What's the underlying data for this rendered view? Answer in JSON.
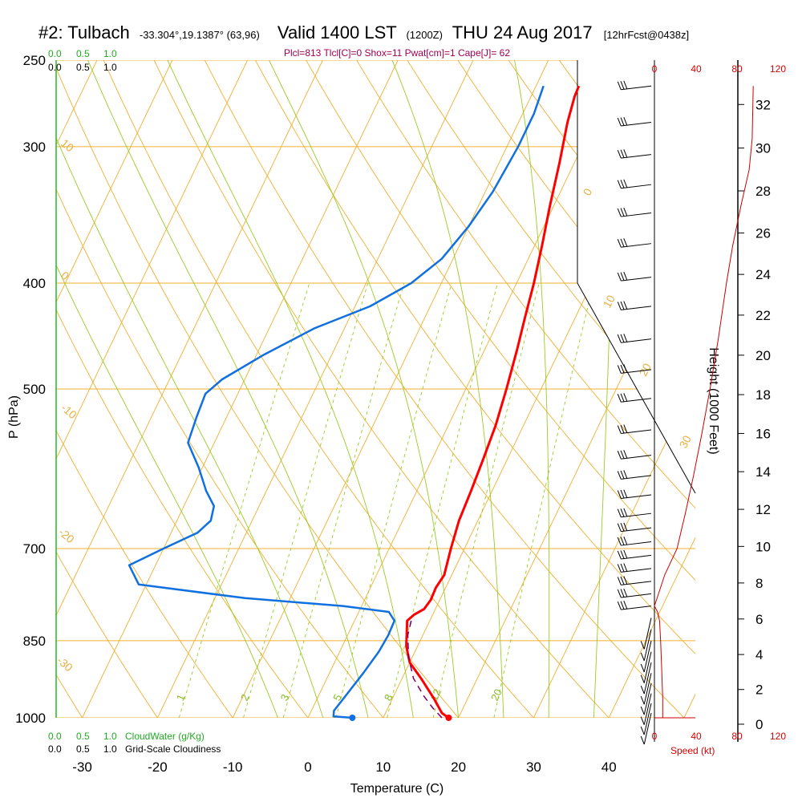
{
  "header": {
    "station": "#2: Tulbach",
    "coords": "-33.304°,19.1387° (63,96)",
    "valid": "Valid 1400 LST",
    "zulu": "(1200Z)",
    "date": "THU 24 Aug 2017",
    "forecast": "[12hrFcst@0438z]"
  },
  "params_line": "Plcl=813 Tlcl[C]=0 Shox=11 Pwat[cm]=1 Cape[J]= 62",
  "scales": {
    "cloudwater_ticks": [
      "0.0",
      "0.5",
      "1.0"
    ],
    "cloudiness_ticks": [
      "0.0",
      "0.5",
      "1.0"
    ],
    "cloudwater_label": "CloudWater (g/Kg)",
    "cloudiness_label": "Grid-Scale Cloudiness",
    "speed_ticks": [
      "0",
      "40",
      "80",
      "120"
    ],
    "speed_label": "Speed (kt)"
  },
  "colors": {
    "isotherm": "#f0b030",
    "dry_adiabat": "#f0b030",
    "moist_adiabat": "#99cc22",
    "mixing_ratio": "#99cc22",
    "temperature": "#ff0000",
    "dewpoint": "#1070e0",
    "parcel": "#7a0060",
    "cloud_axis": "#22bb22",
    "wind_speed": "#cc0000"
  },
  "chart_data": {
    "type": "line",
    "title": "#2: Tulbach Valid 1400 LST (1200Z) THU 24 Aug 2017 [12hrFcst@0438z]",
    "xlabel": "Temperature (C)",
    "ylabel": "P (hPa)",
    "y2label": "Height (1000 Feet)",
    "xlim": [
      -35,
      45
    ],
    "ylim": [
      1000,
      250
    ],
    "x_ticks": [
      "-30",
      "-20",
      "-10",
      "0",
      "10",
      "20",
      "30",
      "40"
    ],
    "x_tick_values": [
      -30,
      -20,
      -10,
      0,
      10,
      20,
      30,
      40
    ],
    "pressure_ticks": [
      "250",
      "300",
      "400",
      "500",
      "700",
      "850",
      "1000"
    ],
    "pressure_values": [
      250,
      300,
      400,
      500,
      700,
      850,
      1000
    ],
    "height_ticks": [
      "0",
      "2",
      "4",
      "6",
      "8",
      "10",
      "12",
      "14",
      "16",
      "18",
      "20",
      "22",
      "24",
      "26",
      "28",
      "30",
      "32"
    ],
    "isotherm_labels": [
      "0",
      "10",
      "20",
      "30"
    ],
    "dry_adiabat_labels": [
      "10",
      "0",
      "-10",
      "-20",
      "-30"
    ],
    "mixing_ratio_labels": [
      "1",
      "2",
      "3",
      "5",
      "8",
      "12",
      "20"
    ],
    "series": [
      {
        "name": "Temperature",
        "points": [
          [
            18.7,
            1000
          ],
          [
            17.5,
            990
          ],
          [
            15.5,
            960
          ],
          [
            12.5,
            920
          ],
          [
            10,
            890
          ],
          [
            8.5,
            860
          ],
          [
            7.5,
            830
          ],
          [
            7,
            815
          ],
          [
            7.5,
            805
          ],
          [
            8.5,
            795
          ],
          [
            8.8,
            780
          ],
          [
            8.7,
            760
          ],
          [
            9,
            740
          ],
          [
            8.2,
            700
          ],
          [
            7.5,
            660
          ],
          [
            7.2,
            620
          ],
          [
            6.8,
            580
          ],
          [
            6.3,
            540
          ],
          [
            5.4,
            500
          ],
          [
            4.3,
            460
          ],
          [
            3.3,
            430
          ],
          [
            2.3,
            400
          ],
          [
            1,
            370
          ],
          [
            -0.5,
            340
          ],
          [
            -2,
            310
          ],
          [
            -3.5,
            285
          ],
          [
            -4.2,
            270
          ],
          [
            -4.3,
            264
          ]
        ]
      },
      {
        "name": "Dewpoint",
        "points": [
          [
            5.9,
            1000
          ],
          [
            3.3,
            997
          ],
          [
            3,
            985
          ],
          [
            3.5,
            960
          ],
          [
            4.5,
            910
          ],
          [
            5.2,
            870
          ],
          [
            5.4,
            840
          ],
          [
            5.3,
            815
          ],
          [
            4,
            800
          ],
          [
            -2.5,
            790
          ],
          [
            -16,
            777
          ],
          [
            -31,
            755
          ],
          [
            -33.5,
            725
          ],
          [
            -30,
            700
          ],
          [
            -26.5,
            677
          ],
          [
            -25.5,
            660
          ],
          [
            -26,
            640
          ],
          [
            -28,
            620
          ],
          [
            -30.5,
            590
          ],
          [
            -33.5,
            560
          ],
          [
            -34,
            530
          ],
          [
            -34.3,
            505
          ],
          [
            -33,
            490
          ],
          [
            -29,
            465
          ],
          [
            -24,
            440
          ],
          [
            -18,
            420
          ],
          [
            -14,
            400
          ],
          [
            -11.5,
            380
          ],
          [
            -10,
            355
          ],
          [
            -9,
            330
          ],
          [
            -8.5,
            300
          ],
          [
            -8.5,
            280
          ],
          [
            -9,
            264
          ]
        ]
      },
      {
        "name": "Parcel",
        "points": [
          [
            17.8,
            1000
          ],
          [
            16,
            980
          ],
          [
            14,
            955
          ],
          [
            11.5,
            920
          ],
          [
            9.5,
            880
          ],
          [
            8,
            840
          ],
          [
            7.5,
            813
          ],
          [
            7.4,
            808
          ]
        ]
      }
    ],
    "wind_speed_profile": {
      "name": "Speed (kt)",
      "xlim": [
        0,
        120
      ],
      "points": [
        [
          8,
          1000
        ],
        [
          8,
          960
        ],
        [
          7,
          900
        ],
        [
          6,
          850
        ],
        [
          5,
          815
        ],
        [
          3,
          800
        ],
        [
          0,
          790
        ],
        [
          4,
          770
        ],
        [
          10,
          740
        ],
        [
          22,
          700
        ],
        [
          30,
          650
        ],
        [
          38,
          600
        ],
        [
          46,
          550
        ],
        [
          54,
          500
        ],
        [
          62,
          450
        ],
        [
          70,
          400
        ],
        [
          76,
          370
        ],
        [
          84,
          340
        ],
        [
          92,
          315
        ],
        [
          95,
          295
        ],
        [
          96,
          264
        ]
      ]
    }
  }
}
